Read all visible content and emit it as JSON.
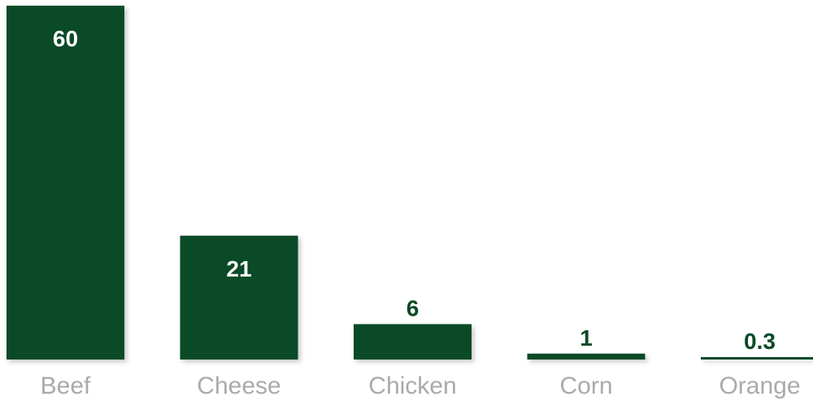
{
  "chart_data": {
    "type": "bar",
    "categories": [
      "Beef",
      "Cheese",
      "Chicken",
      "Corn",
      "Orange"
    ],
    "values": [
      60,
      21,
      6,
      1,
      0.3
    ],
    "value_labels": [
      "60",
      "21",
      "6",
      "1",
      "0.3"
    ],
    "ylim": [
      0,
      60
    ],
    "grid": false,
    "legend": "none",
    "colors": {
      "bar": "#0a4a27",
      "value_label_inside": "#ffffff",
      "value_label_outside": "#0a4a27",
      "category_label": "#aaaaaa"
    }
  }
}
